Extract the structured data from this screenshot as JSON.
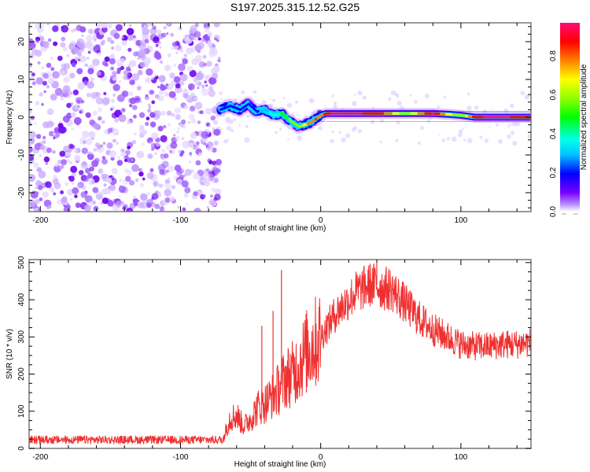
{
  "title": "S197.2025.315.12.52.G25",
  "chart_data": [
    {
      "type": "heatmap",
      "name": "spectrogram",
      "xlabel": "Height of straight line (km)",
      "ylabel": "Frequency (Hz)",
      "xlim": [
        -208,
        150
      ],
      "ylim": [
        -25,
        25
      ],
      "xticks": [
        -200,
        -100,
        0,
        100
      ],
      "xtick_labels": [
        "-200",
        "-100",
        "0",
        "100"
      ],
      "yticks": [
        -20,
        -10,
        0,
        10,
        20
      ],
      "ytick_labels": [
        "-20",
        "-10",
        "0",
        "10",
        "20"
      ],
      "grid": false,
      "noise_region_x": [
        -208,
        -72
      ],
      "signal_track": {
        "x": [
          -72,
          -65,
          -58,
          -52,
          -46,
          -40,
          -34,
          -28,
          -22,
          -16,
          -12,
          -8,
          -4,
          0,
          4,
          8,
          20,
          40,
          60,
          80,
          90,
          100,
          110,
          120,
          130,
          140,
          150
        ],
        "freq": [
          2.0,
          3.0,
          2.0,
          3.5,
          1.5,
          2.0,
          0.5,
          1.0,
          -1.0,
          -2.5,
          -2.0,
          -1.5,
          -0.5,
          0.5,
          1.0,
          1.0,
          1.0,
          1.0,
          1.0,
          1.0,
          0.8,
          0.5,
          0.0,
          0.0,
          0.0,
          0.0,
          0.0
        ],
        "amplitude": [
          0.3,
          0.3,
          0.3,
          0.25,
          0.3,
          0.35,
          0.45,
          0.5,
          0.6,
          0.6,
          0.7,
          0.8,
          0.85,
          0.8,
          0.9,
          0.95,
          0.95,
          0.9,
          0.6,
          0.95,
          0.7,
          0.6,
          0.9,
          0.95,
          0.95,
          0.9,
          0.9
        ]
      },
      "colorbar": {
        "label": "Normalized spectral amplitude",
        "ticks": [
          0.0,
          0.2,
          0.4,
          0.6,
          0.8
        ],
        "tick_labels": [
          "0.0",
          "0.2",
          "0.4",
          "0.6",
          "0.8"
        ],
        "range": [
          0,
          0.97
        ],
        "colors": [
          "#ffffff",
          "#b58cff",
          "#7a00ff",
          "#0000ff",
          "#00c0ff",
          "#00ffee",
          "#00ff00",
          "#90ff00",
          "#ffff00",
          "#ff8000",
          "#ff0000",
          "#ff0a78"
        ]
      }
    },
    {
      "type": "line",
      "name": "snr",
      "xlabel": "Height of straight line (km)",
      "ylabel": "SNR (10 * v/v)",
      "xlim": [
        -208,
        150
      ],
      "ylim": [
        0,
        508
      ],
      "xticks": [
        -200,
        -100,
        0,
        100
      ],
      "xtick_labels": [
        "-200",
        "-100",
        "0",
        "100"
      ],
      "yticks": [
        0,
        100,
        200,
        300,
        400,
        500
      ],
      "ytick_labels": [
        "0",
        "100",
        "200",
        "300",
        "400",
        "500"
      ],
      "grid": false,
      "color": "#f03030",
      "series": [
        {
          "name": "SNR",
          "x": [
            -208,
            -180,
            -150,
            -120,
            -90,
            -70,
            -65,
            -60,
            -55,
            -50,
            -45,
            -40,
            -35,
            -30,
            -25,
            -20,
            -15,
            -10,
            -5,
            0,
            5,
            10,
            15,
            20,
            25,
            30,
            35,
            40,
            45,
            50,
            55,
            60,
            65,
            70,
            80,
            90,
            100,
            110,
            120,
            130,
            140,
            150
          ],
          "y": [
            20,
            20,
            20,
            20,
            20,
            20,
            80,
            90,
            60,
            80,
            110,
            120,
            140,
            160,
            190,
            200,
            230,
            260,
            280,
            300,
            330,
            360,
            380,
            400,
            420,
            430,
            440,
            440,
            430,
            430,
            410,
            390,
            370,
            350,
            320,
            300,
            280,
            275,
            275,
            280,
            280,
            285
          ],
          "spikes": [
            {
              "x": -42,
              "y": 330
            },
            {
              "x": -34,
              "y": 370
            },
            {
              "x": -28,
              "y": 480
            },
            {
              "x": 40,
              "y": 500
            }
          ]
        }
      ]
    }
  ]
}
